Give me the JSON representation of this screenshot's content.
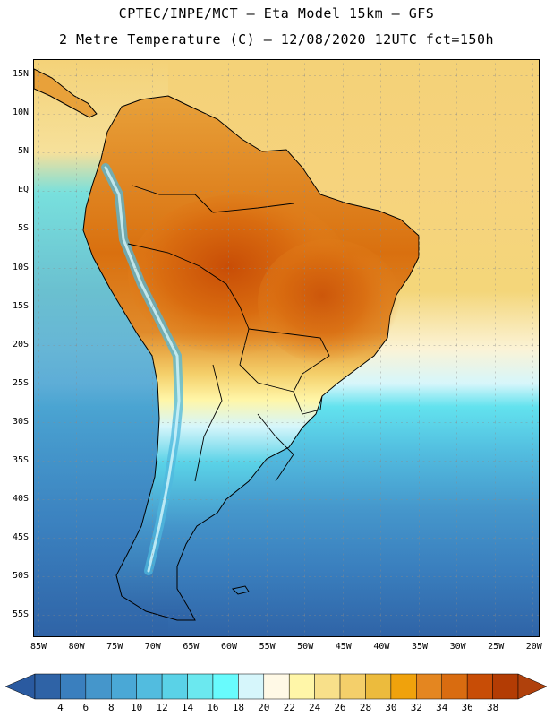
{
  "title": {
    "line1": "CPTEC/INPE/MCT –  Eta Model 15km – GFS",
    "line2": "2 Metre Temperature (C) – 12/08/2020 12UTC fct=150h"
  },
  "latitude_labels": [
    "15N",
    "10N",
    "5N",
    "EQ",
    "5S",
    "10S",
    "15S",
    "20S",
    "25S",
    "30S",
    "35S",
    "40S",
    "45S",
    "50S",
    "55S"
  ],
  "longitude_labels": [
    "85W",
    "80W",
    "75W",
    "70W",
    "65W",
    "60W",
    "55W",
    "50W",
    "45W",
    "40W",
    "35W",
    "30W",
    "25W",
    "20W"
  ],
  "colorbar": {
    "unit": "C",
    "labels": [
      "4",
      "6",
      "8",
      "10",
      "12",
      "14",
      "16",
      "18",
      "20",
      "22",
      "24",
      "26",
      "28",
      "30",
      "32",
      "34",
      "36",
      "38"
    ],
    "colors": [
      "#2f63a6",
      "#3a7fbe",
      "#4596cb",
      "#4aa8d6",
      "#52bcdf",
      "#5ad2e7",
      "#6be8ef",
      "#68fbfd",
      "#d6f6fb",
      "#fff9e6",
      "#fff6a8",
      "#f8e08a",
      "#f4cf6a",
      "#ecbb3d",
      "#f0a20c",
      "#e48620",
      "#d96c10",
      "#c84d06",
      "#b33c04"
    ],
    "low_arrow_color": "#2a5aa0",
    "high_arrow_color": "#b0410c"
  },
  "map": {
    "ocean_north_color": "#f3cf68",
    "ocean_south_color": "#2f66a8"
  }
}
